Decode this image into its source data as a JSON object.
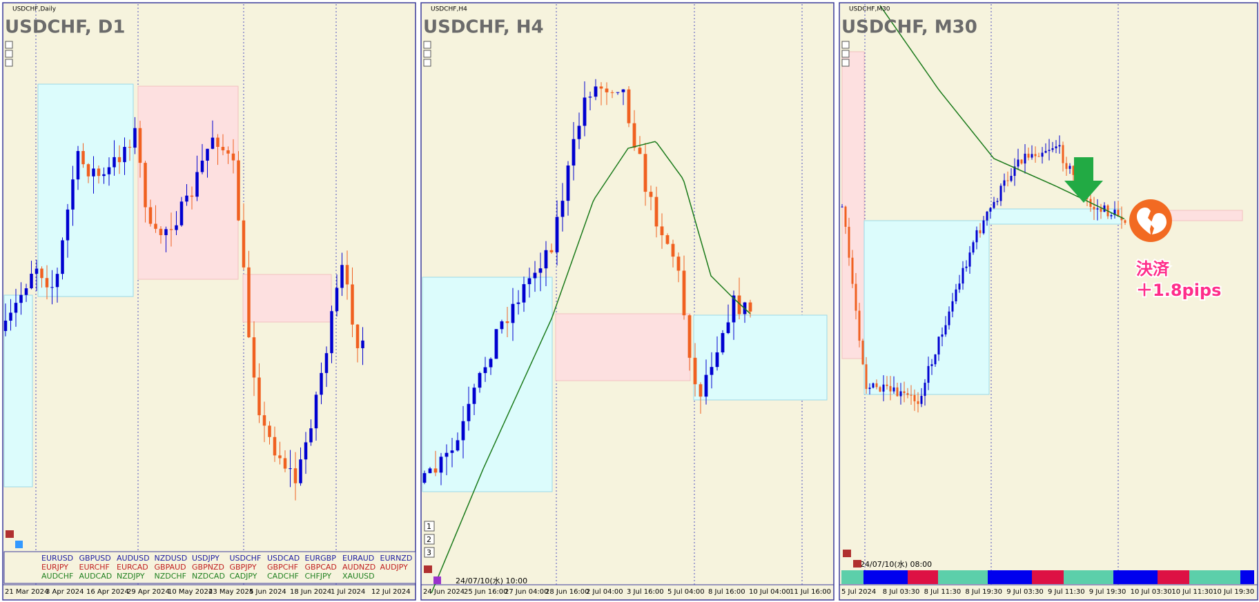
{
  "panels": [
    {
      "symbol_label": "USDCHF,Daily",
      "title": "USDCHF, D1",
      "dates": [
        "21 Mar 2024",
        "3 Apr 2024",
        "16 Apr 2024",
        "29 Apr 2024",
        "10 May 2024",
        "23 May 2024",
        "5 Jun 2024",
        "18 Jun 2024",
        "1 Jul 2024",
        "12 Jul 2024"
      ]
    },
    {
      "symbol_label": "USDCHF,H4",
      "title": "USDCHF, H4",
      "timestamp": "24/07/10(水) 10:00",
      "dates": [
        "24 Jun 2024",
        "25 Jun 16:00",
        "27 Jun 04:00",
        "28 Jun 16:00",
        "2 Jul 04:00",
        "3 Jul 16:00",
        "5 Jul 04:00",
        "8 Jul 16:00",
        "10 Jul 04:00",
        "11 Jul 16:00"
      ]
    },
    {
      "symbol_label": "USDCHF,M30",
      "title": "USDCHF, M30",
      "timestamp": "24/07/10(水) 08:00",
      "dates": [
        "5 Jul 2024",
        "8 Jul 03:30",
        "8 Jul 11:30",
        "8 Jul 19:30",
        "9 Jul 03:30",
        "9 Jul 11:30",
        "9 Jul 19:30",
        "10 Jul 03:30",
        "10 Jul 11:30",
        "10 Jul 19:30"
      ]
    }
  ],
  "symbols": [
    [
      "EURUSD",
      "GBPUSD",
      "AUDUSD",
      "NZDUSD",
      "USDJPY",
      "USDCHF",
      "USDCAD",
      "EURGBP",
      "EURAUD",
      "EURNZD"
    ],
    [
      "EURJPY",
      "EURCHF",
      "EURCAD",
      "GBPAUD",
      "GBPNZD",
      "GBPJPY",
      "GBPCHF",
      "GBPCAD",
      "AUDNZD",
      "AUDJPY"
    ],
    [
      "AUDCHF",
      "AUDCAD",
      "NZDJPY",
      "NZDCHF",
      "NZDCAD",
      "CADJPY",
      "CADCHF",
      "CHFJPY",
      "XAUUSD"
    ]
  ],
  "buttons": [
    "1",
    "2",
    "3"
  ],
  "annotation": {
    "line1": "決済",
    "line2": "＋1.8pips"
  }
}
